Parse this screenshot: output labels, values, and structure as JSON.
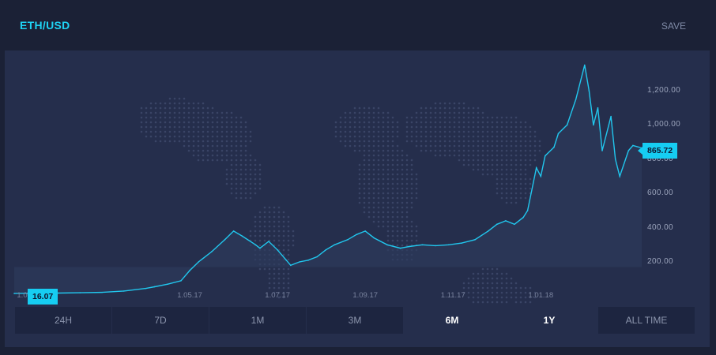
{
  "header": {
    "title": "ETH/USD",
    "save_label": "SAVE"
  },
  "range_buttons": [
    {
      "label": "24H",
      "active": false
    },
    {
      "label": "7D",
      "active": false
    },
    {
      "label": "1M",
      "active": false
    },
    {
      "label": "3M",
      "active": false
    },
    {
      "label": "6M",
      "active": true
    },
    {
      "label": "1Y",
      "active": true
    },
    {
      "label": "ALL TIME",
      "active": false
    }
  ],
  "callouts": {
    "start": "16.07",
    "end": "865.72"
  },
  "colors": {
    "accent": "#1fd3f4",
    "line": "#21c7ee",
    "panel": "#252e4c",
    "background": "#1b2136"
  },
  "chart_data": {
    "type": "area",
    "title": "ETH/USD",
    "y_ticks": [
      "1,200.00",
      "1,000.00",
      "800.00",
      "600.00",
      "400.00",
      "200.00"
    ],
    "y_tick_values": [
      1200,
      1000,
      800,
      600,
      400,
      200
    ],
    "x_tick_labels": [
      "1.0",
      "1.05.17",
      "1.07.17",
      "1.09.17",
      "1.11.17",
      "1.01.18"
    ],
    "x_tick_values": [
      0,
      4,
      6,
      8,
      10,
      12
    ],
    "xlabel": "",
    "ylabel": "",
    "ylim": [
      16,
      1350
    ],
    "xlim": [
      0,
      14.3
    ],
    "grid": false,
    "series": [
      {
        "x": [
          0,
          0.5,
          1,
          1.5,
          2,
          2.5,
          3,
          3.2,
          3.5,
          3.8,
          4.0,
          4.2,
          4.5,
          4.8,
          5.0,
          5.2,
          5.5,
          5.6,
          5.8,
          6.0,
          6.2,
          6.3,
          6.5,
          6.7,
          6.9,
          7.1,
          7.3,
          7.6,
          7.8,
          8.0,
          8.2,
          8.5,
          8.8,
          9.0,
          9.3,
          9.6,
          9.9,
          10.2,
          10.5,
          10.8,
          11.0,
          11.2,
          11.4,
          11.6,
          11.7,
          11.9,
          12.0,
          12.1,
          12.3,
          12.4,
          12.6,
          12.8,
          13.0,
          13.1,
          13.2,
          13.3,
          13.4,
          13.6,
          13.7,
          13.8,
          14.0,
          14.1,
          14.3
        ],
        "values": [
          16,
          17,
          18,
          20,
          22,
          30,
          45,
          55,
          70,
          90,
          150,
          200,
          260,
          330,
          380,
          350,
          300,
          280,
          320,
          270,
          210,
          180,
          200,
          210,
          230,
          270,
          300,
          330,
          360,
          380,
          340,
          300,
          280,
          290,
          300,
          295,
          300,
          310,
          330,
          380,
          420,
          440,
          420,
          460,
          500,
          750,
          700,
          820,
          870,
          950,
          1000,
          1150,
          1350,
          1200,
          1000,
          1100,
          850,
          1050,
          800,
          700,
          850,
          880,
          865.72
        ]
      }
    ]
  }
}
